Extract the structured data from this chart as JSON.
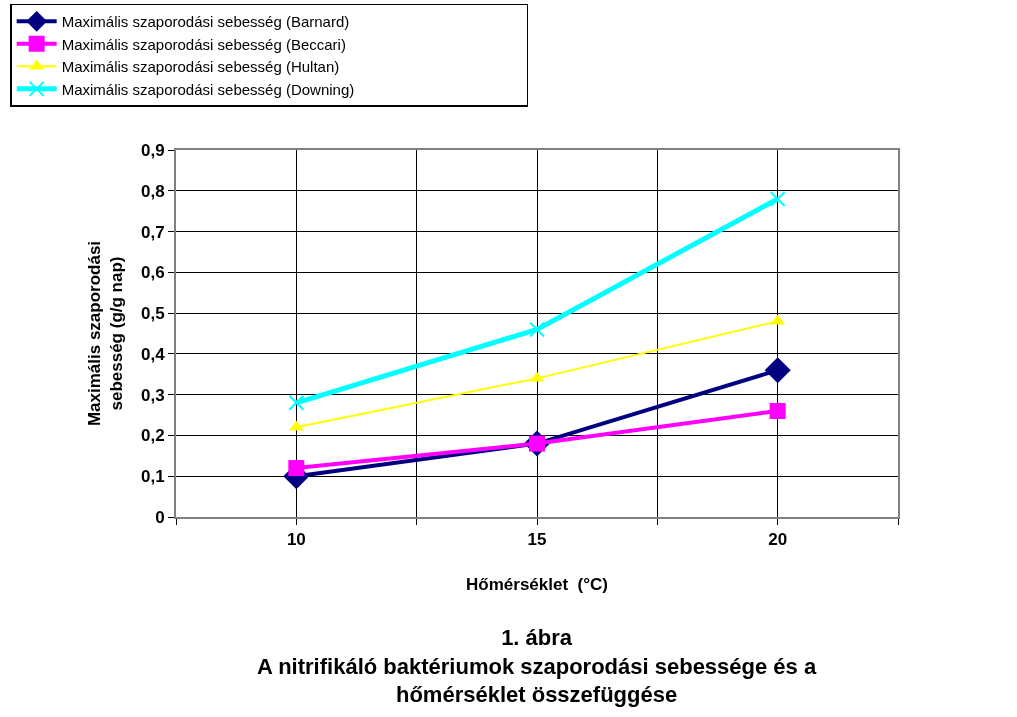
{
  "chart_data": {
    "type": "line",
    "title": "1. ábra\nA nitrifikáló baktériumok szaporodási sebessége és a\nhőmérséklet összefüggése",
    "xlabel": "Hőmérséklet  (°C)",
    "ylabel": "Maximális szaporodási\nsebesség (g/g nap)",
    "x": [
      10,
      15,
      20
    ],
    "xlim": [
      7.5,
      22.5
    ],
    "xticks": [
      {
        "value": 7.5,
        "label": null
      },
      10,
      {
        "value": 12.5,
        "label": null
      },
      15,
      {
        "value": 17.5,
        "label": null
      },
      20,
      {
        "value": 22.5,
        "label": null
      }
    ],
    "ylim": [
      0,
      0.9
    ],
    "yticks": [
      {
        "value": 0,
        "label": "0"
      },
      {
        "value": 0.1,
        "label": "0,1"
      },
      {
        "value": 0.2,
        "label": "0,2"
      },
      {
        "value": 0.3,
        "label": "0,3"
      },
      {
        "value": 0.4,
        "label": "0,4"
      },
      {
        "value": 0.5,
        "label": "0,5"
      },
      {
        "value": 0.6,
        "label": "0,6"
      },
      {
        "value": 0.7,
        "label": "0,7"
      },
      {
        "value": 0.8,
        "label": "0,8"
      },
      {
        "value": 0.9,
        "label": "0,9"
      }
    ],
    "grid": true,
    "legend": "top",
    "line_style": "solid",
    "series": [
      {
        "name": "Maximális szaporodási sebesség (Barnard)",
        "color": "#000080",
        "marker": "diamond",
        "values": [
          0.1,
          0.18,
          0.36
        ]
      },
      {
        "name": "Maximális szaporodási sebesség (Beccari)",
        "color": "#ff00ff",
        "marker": "square",
        "values": [
          0.12,
          0.18,
          0.26
        ]
      },
      {
        "name": "Maximális szaporodási sebesség (Hultan)",
        "color": "#ffff00",
        "marker": "triangle",
        "values": [
          0.22,
          0.34,
          0.48
        ]
      },
      {
        "name": "Maximális szaporodási sebesség (Downing)",
        "color": "#00ffff",
        "marker": "cross",
        "values": [
          0.28,
          0.46,
          0.78
        ]
      }
    ]
  }
}
